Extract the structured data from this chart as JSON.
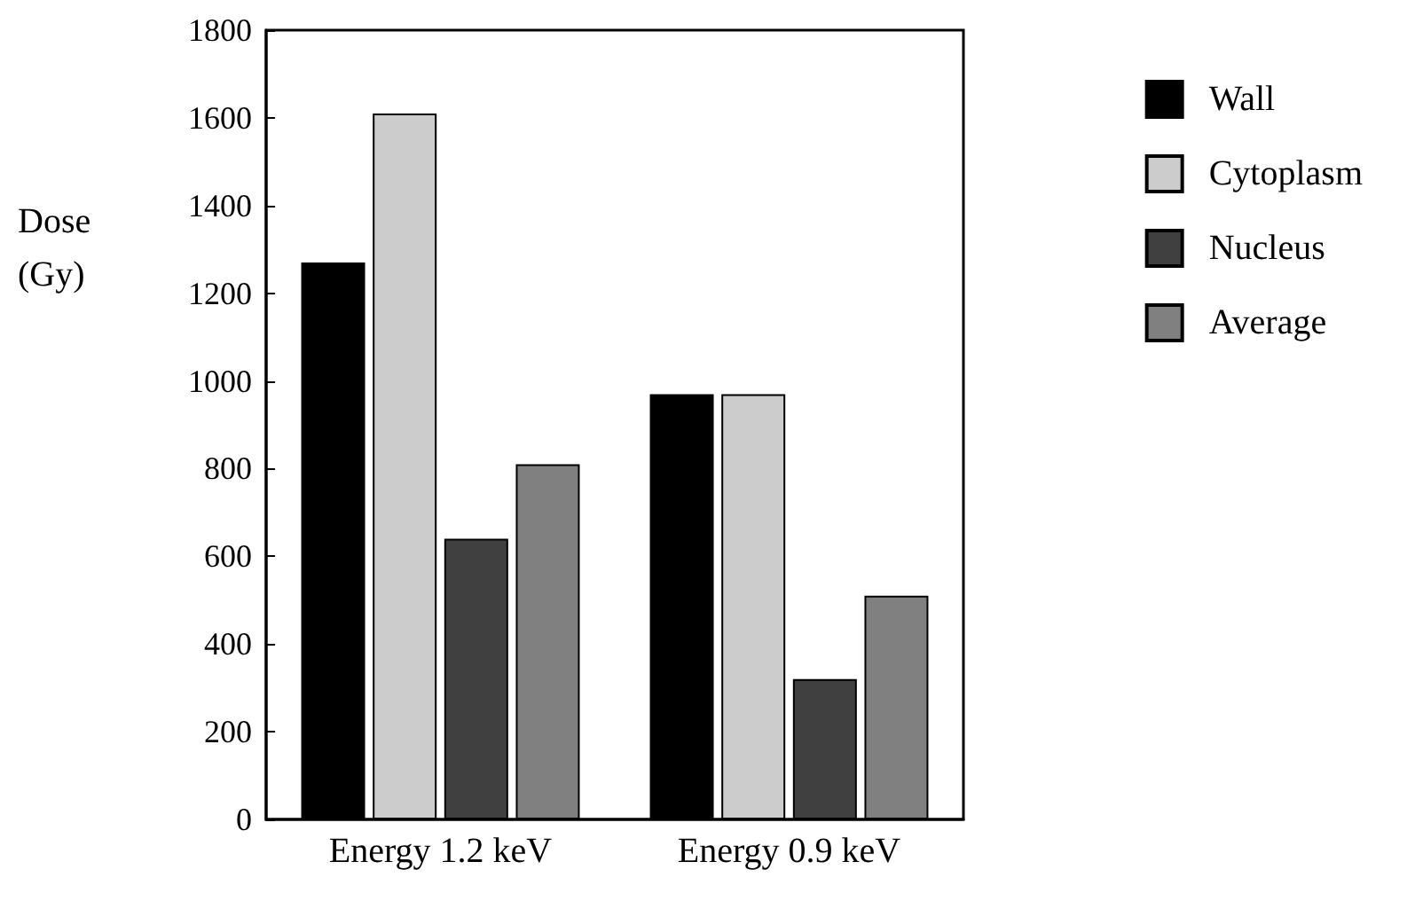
{
  "chart_data": {
    "type": "bar",
    "ylabel": "Dose\n(Gy)",
    "categories": [
      "Energy 1.2 keV",
      "Energy 0.9 keV"
    ],
    "series": [
      {
        "name": "Wall",
        "color": "#000000",
        "values": [
          1270,
          970
        ]
      },
      {
        "name": "Cytoplasm",
        "color": "#cccccc",
        "values": [
          1610,
          970
        ]
      },
      {
        "name": "Nucleus",
        "color": "#404040",
        "values": [
          640,
          320
        ]
      },
      {
        "name": "Average",
        "color": "#808080",
        "values": [
          810,
          510
        ]
      }
    ],
    "ylim": [
      0,
      1800
    ],
    "yticks": [
      0,
      200,
      400,
      600,
      800,
      1000,
      1200,
      1400,
      1600,
      1800
    ],
    "grid": false,
    "legend": "right"
  }
}
